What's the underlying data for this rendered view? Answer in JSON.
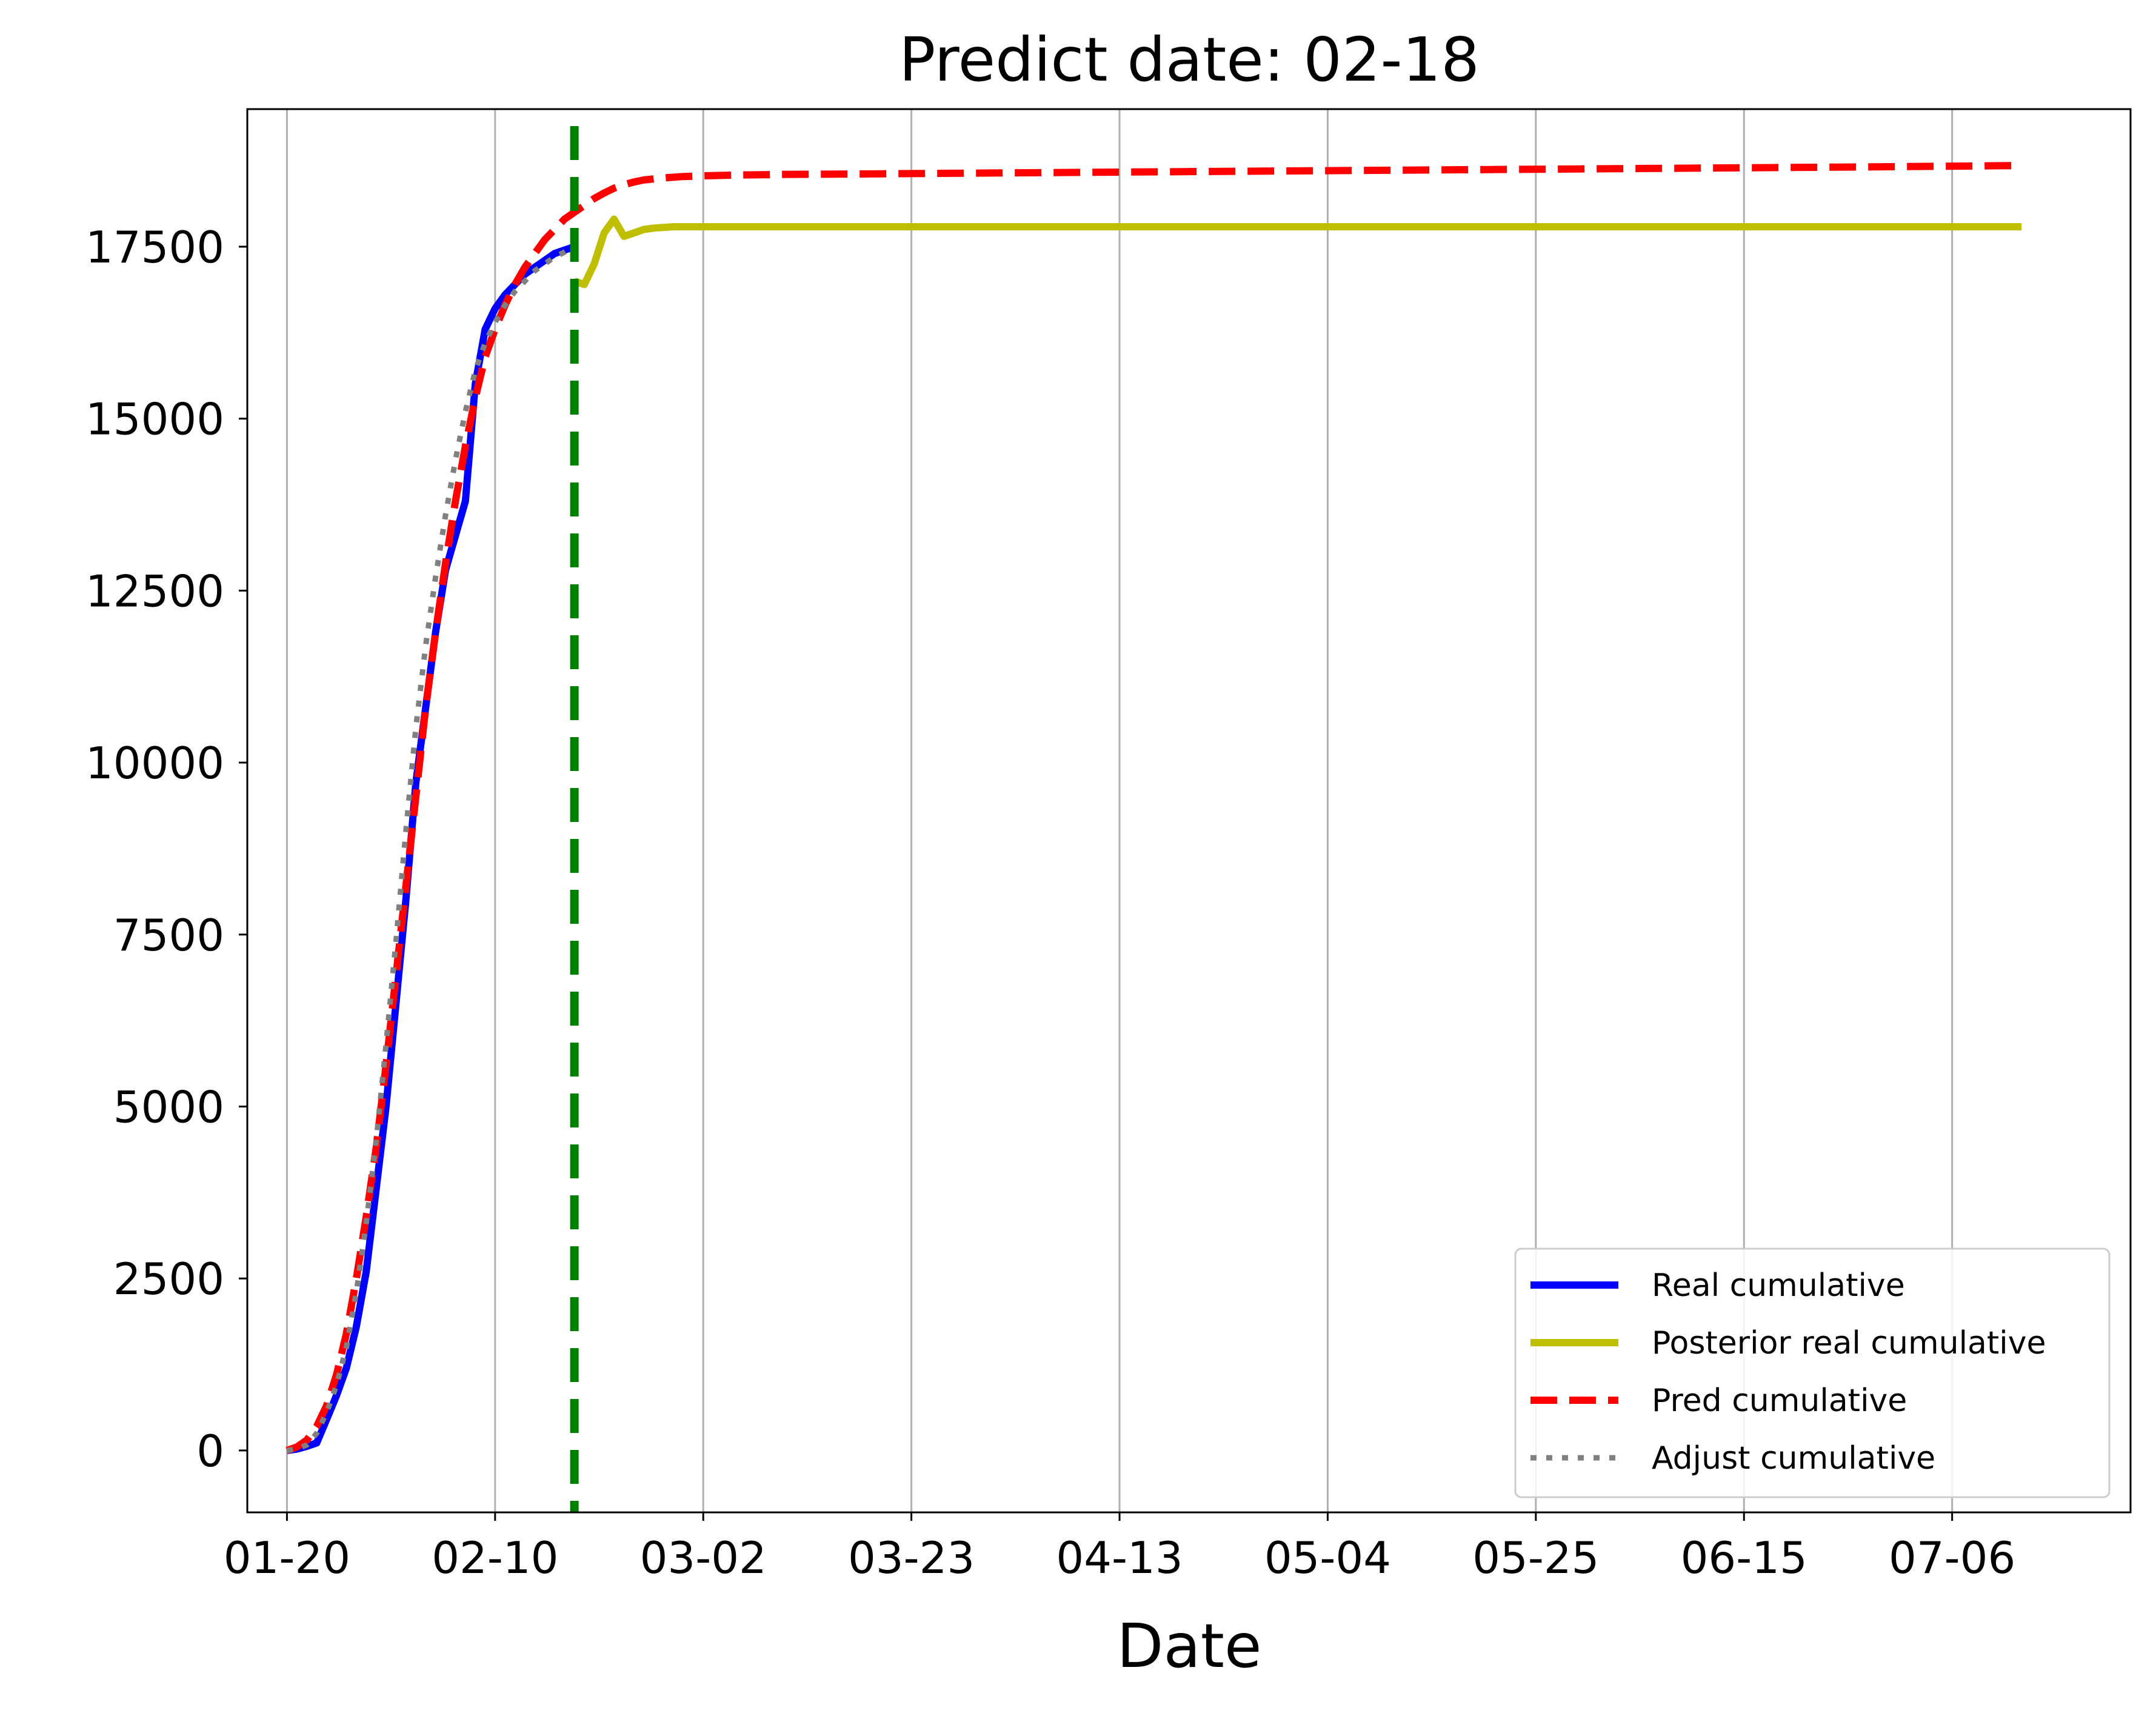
{
  "chart_data": {
    "type": "line",
    "title": "Predict date: 02-18",
    "xlabel": "Date",
    "ylabel": "",
    "start_date": "01-20",
    "xlim": [
      -4,
      186
    ],
    "ylim": [
      -900,
      19500
    ],
    "x_ticks": [
      {
        "day": 0,
        "label": "01-20"
      },
      {
        "day": 21,
        "label": "02-10"
      },
      {
        "day": 42,
        "label": "03-02"
      },
      {
        "day": 63,
        "label": "03-23"
      },
      {
        "day": 84,
        "label": "04-13"
      },
      {
        "day": 105,
        "label": "05-04"
      },
      {
        "day": 126,
        "label": "05-25"
      },
      {
        "day": 147,
        "label": "06-15"
      },
      {
        "day": 168,
        "label": "07-06"
      }
    ],
    "y_ticks": [
      0,
      2500,
      5000,
      7500,
      10000,
      12500,
      15000,
      17500
    ],
    "y_tick_labels": [
      "0",
      "2500",
      "5000",
      "7500",
      "10000",
      "12500",
      "15000",
      "17500"
    ],
    "grid": "x-only",
    "legend_position": "bottom-right",
    "vline": {
      "day": 29,
      "color": "#008000",
      "style": "dashed",
      "label": "02-18"
    },
    "series": [
      {
        "name": "Real cumulative",
        "color": "#0000ff",
        "style": "solid",
        "x": [
          0,
          1,
          2,
          3,
          4,
          5,
          6,
          7,
          8,
          9,
          10,
          11,
          12,
          13,
          14,
          15,
          16,
          17,
          18,
          19,
          20,
          21,
          22,
          23,
          24,
          25,
          26,
          27,
          28,
          29
        ],
        "y": [
          0,
          20,
          60,
          110,
          450,
          800,
          1200,
          1800,
          2600,
          3800,
          5000,
          6500,
          8000,
          9700,
          10800,
          11900,
          12800,
          13300,
          13800,
          15500,
          16300,
          16600,
          16800,
          16950,
          17100,
          17200,
          17300,
          17400,
          17450,
          17500
        ]
      },
      {
        "name": "Posterior real cumulative",
        "color": "#bfbf00",
        "style": "solid",
        "x": [
          29,
          30,
          31,
          32,
          33,
          34,
          35,
          36,
          37,
          38,
          39,
          40,
          42,
          45,
          50,
          60,
          80,
          100,
          120,
          140,
          160,
          175
        ],
        "y": [
          17000,
          16950,
          17250,
          17700,
          17900,
          17650,
          17700,
          17750,
          17770,
          17780,
          17790,
          17790,
          17790,
          17790,
          17790,
          17790,
          17790,
          17790,
          17790,
          17790,
          17790,
          17790
        ]
      },
      {
        "name": "Pred cumulative",
        "color": "#ff0000",
        "style": "dashed",
        "x": [
          0,
          1,
          2,
          3,
          4,
          5,
          6,
          7,
          8,
          9,
          10,
          11,
          12,
          13,
          14,
          15,
          16,
          17,
          18,
          19,
          20,
          21,
          22,
          23,
          24,
          25,
          26,
          27,
          28,
          29,
          30,
          31,
          32,
          33,
          34,
          35,
          36,
          38,
          40,
          42,
          45,
          50,
          60,
          80,
          100,
          120,
          140,
          160,
          175
        ],
        "y": [
          0,
          50,
          150,
          350,
          650,
          1100,
          1700,
          2500,
          3400,
          4400,
          5600,
          6900,
          8200,
          9500,
          10800,
          11900,
          12900,
          13800,
          14600,
          15300,
          15900,
          16300,
          16650,
          16950,
          17200,
          17400,
          17600,
          17750,
          17900,
          18000,
          18100,
          18200,
          18280,
          18350,
          18400,
          18440,
          18470,
          18500,
          18520,
          18530,
          18540,
          18550,
          18560,
          18580,
          18600,
          18620,
          18640,
          18660,
          18680
        ]
      },
      {
        "name": "Adjust cumulative",
        "color": "#808080",
        "style": "dotted",
        "x": [
          0,
          1,
          2,
          3,
          4,
          5,
          6,
          7,
          8,
          9,
          10,
          11,
          12,
          13,
          14,
          15,
          16,
          17,
          18,
          19,
          20,
          21,
          22,
          23,
          24,
          25,
          26,
          27,
          28,
          29
        ],
        "y": [
          0,
          20,
          80,
          250,
          550,
          950,
          1500,
          2300,
          3300,
          4500,
          5900,
          7400,
          9000,
          10500,
          11700,
          12700,
          13600,
          14400,
          15100,
          15700,
          16100,
          16400,
          16650,
          16850,
          17000,
          17150,
          17250,
          17350,
          17420,
          17500
        ]
      }
    ]
  }
}
